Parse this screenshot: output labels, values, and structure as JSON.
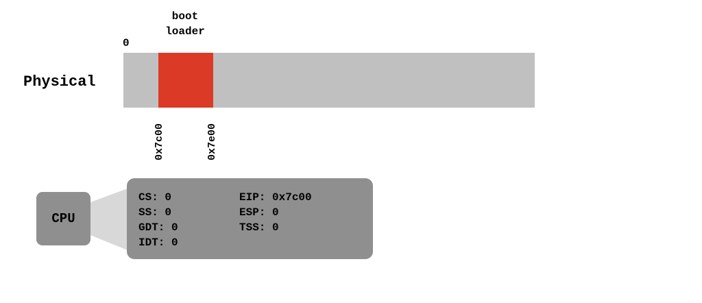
{
  "diagram": {
    "address_space_label": "Physical",
    "origin_label": "0",
    "address_space_size": 48128,
    "region": {
      "title": "boot loader",
      "start_value": 4096,
      "end_value": 10496,
      "start_label": "0x7c00",
      "end_label": "0x7e00"
    },
    "cpu_label": "CPU",
    "registers": {
      "left_column": [
        "CS: 0",
        "SS: 0",
        "GDT: 0",
        "IDT: 0"
      ],
      "right_column": [
        "EIP: 0x7c00",
        "ESP: 0",
        "TSS: 0"
      ]
    }
  },
  "colors": {
    "memory_bar": "#c0c0c0",
    "region_fill": "#db3b26",
    "cpu_box": "#8f8f8f",
    "register_panel": "#8f8f8f",
    "connector": "#d8d8d8"
  }
}
